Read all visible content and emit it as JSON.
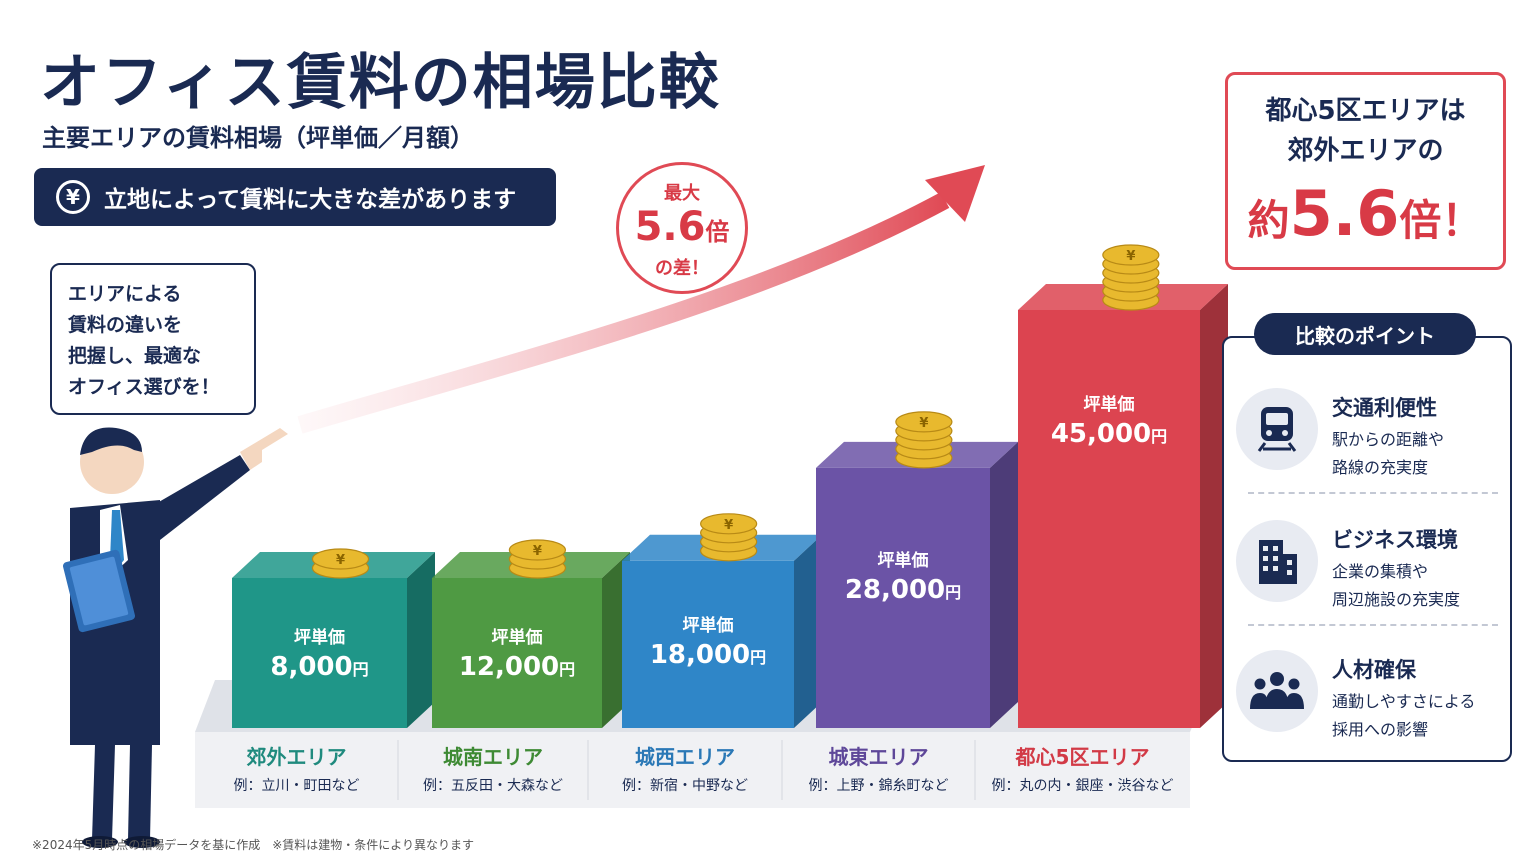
{
  "title": "オフィス賃料の相場比較",
  "subtitle": "主要エリアの賃料相場（坪単価／月額）",
  "banner": {
    "icon": "yen-icon",
    "yen_symbol": "¥",
    "text": "立地によって賃料に大きな差があります"
  },
  "speech_bubble": {
    "lines": [
      "エリアによる",
      "賃料の違いを",
      "把握し、最適な",
      "オフィス選びを！"
    ]
  },
  "callout": {
    "line1": "最大",
    "value": "5.6",
    "unit": "倍",
    "line3": "の差！"
  },
  "highlight": {
    "line1": "都心5区エリアは",
    "line2": "郊外エリアの",
    "prefix": "約",
    "value": "5.6",
    "suffix": "倍！"
  },
  "points": {
    "header": "比較のポイント",
    "items": [
      {
        "title": "交通利便性",
        "desc1": "駅からの距離や",
        "desc2": "路線の充実度",
        "icon": "train-icon"
      },
      {
        "title": "ビジネス環境",
        "desc1": "企業の集積や",
        "desc2": "周辺施設の充実度",
        "icon": "building-icon"
      },
      {
        "title": "人材確保",
        "desc1": "通勤しやすさによる",
        "desc2": "採用への影響",
        "icon": "people-icon"
      }
    ]
  },
  "footnote": "※2024年5月時点の相場データを基に作成　※賃料は建物・条件により異なります",
  "chart_data": {
    "type": "bar",
    "value_label": "坪単価",
    "unit": "円",
    "categories": [
      "郊外エリア",
      "城南エリア",
      "城西エリア",
      "城東エリア",
      "都心5区エリア"
    ],
    "examples": [
      "例：立川・町田など",
      "例：五反田・大森など",
      "例：新宿・中野など",
      "例：上野・錦糸町など",
      "例：丸の内・銀座・渋谷など"
    ],
    "values": [
      8000,
      12000,
      18000,
      28000,
      45000
    ],
    "value_labels": [
      "8,000",
      "12,000",
      "18,000",
      "28,000",
      "45,000"
    ],
    "colors": [
      "#1f9688",
      "#4f9a43",
      "#2f86c8",
      "#6b53a6",
      "#dc4450"
    ],
    "label_colors": [
      "#1f8a7e",
      "#3e8a34",
      "#2a78b6",
      "#5e4799",
      "#d23a46"
    ]
  },
  "colors": {
    "navy": "#1a2a52",
    "accent_red": "#e04a55",
    "coin_gold": "#f2c540"
  }
}
